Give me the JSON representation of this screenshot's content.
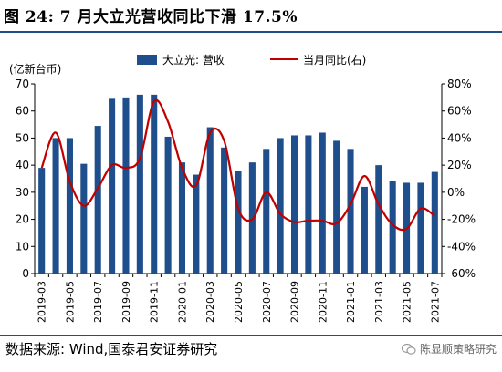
{
  "title": "图 24:  7 月大立光营收同比下滑 17.5%",
  "source": "数据来源:  Wind,国泰君安证券研究",
  "watermark": "陈显顺策略研究",
  "chart_data": {
    "type": "bar",
    "unit_label": "(亿新台币)",
    "categories": [
      "2019-03",
      "2019-04",
      "2019-05",
      "2019-06",
      "2019-07",
      "2019-08",
      "2019-09",
      "2019-10",
      "2019-11",
      "2019-12",
      "2020-01",
      "2020-02",
      "2020-03",
      "2020-04",
      "2020-05",
      "2020-06",
      "2020-07",
      "2020-08",
      "2020-09",
      "2020-10",
      "2020-11",
      "2020-12",
      "2021-01",
      "2021-02",
      "2021-03",
      "2021-04",
      "2021-05",
      "2021-06",
      "2021-07"
    ],
    "x_tick_labels": [
      "2019-03",
      "2019-05",
      "2019-07",
      "2019-09",
      "2019-11",
      "2020-01",
      "2020-03",
      "2020-05",
      "2020-07",
      "2020-09",
      "2020-11",
      "2021-01",
      "2021-03",
      "2021-05",
      "2021-07"
    ],
    "series": [
      {
        "name": "大立光: 营收",
        "type": "bar",
        "axis": "left",
        "color": "#1f4e8c",
        "values": [
          39,
          50,
          50,
          40.5,
          54.5,
          64.5,
          65,
          66,
          66,
          50.5,
          41,
          36.5,
          54,
          46.5,
          38,
          41,
          46,
          50,
          51,
          51,
          52,
          49,
          46,
          32,
          40,
          34,
          33.5,
          33.5,
          37.5
        ]
      },
      {
        "name": "当月同比(右)",
        "type": "line",
        "axis": "right",
        "color": "#c00000",
        "values": [
          18,
          44,
          8,
          -10,
          3,
          20,
          18,
          25,
          67,
          52,
          18,
          5,
          44,
          38,
          -12,
          -20,
          0,
          -16,
          -22,
          -21,
          -21,
          -23,
          -9,
          12,
          -9,
          -24,
          -27,
          -12,
          -17.5
        ]
      }
    ],
    "ylim_left": [
      0,
      70
    ],
    "yticks_left": [
      0,
      10,
      20,
      30,
      40,
      50,
      60,
      70
    ],
    "ylim_right": [
      -60,
      80
    ],
    "yticks_right": [
      "-60%",
      "-40%",
      "-20%",
      "0%",
      "20%",
      "40%",
      "60%",
      "80%"
    ],
    "legend_position": "top",
    "grid": false
  }
}
